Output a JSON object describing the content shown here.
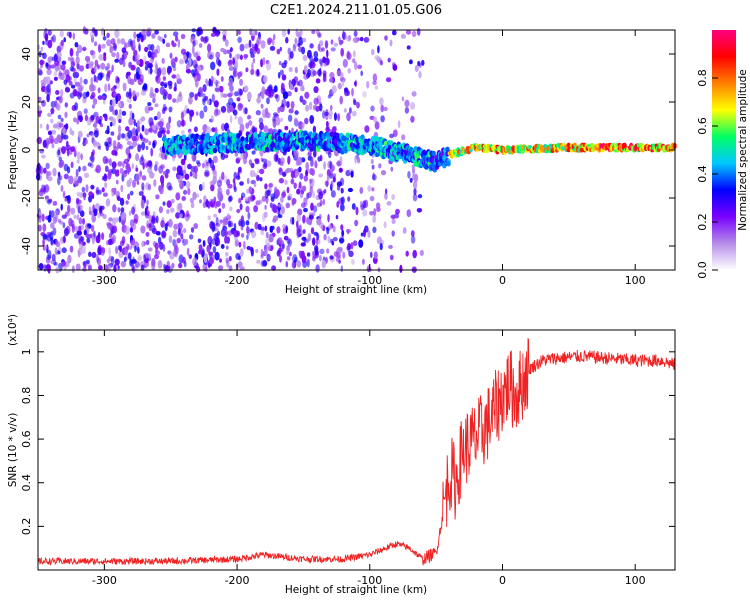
{
  "title": "C2E1.2024.211.01.05.G06",
  "chart_data": [
    {
      "type": "heatmap",
      "xlabel": "Height of straight line (km)",
      "ylabel": "Frequency (Hz)",
      "xlim": [
        -350,
        130
      ],
      "ylim": [
        -50,
        50
      ],
      "x_ticks": [
        -300,
        -200,
        -100,
        0,
        100
      ],
      "y_ticks": [
        -40,
        -20,
        0,
        20,
        40
      ],
      "colorbar": {
        "label": "Normalized spectral amplitude",
        "range": [
          0.0,
          1.0
        ],
        "ticks": [
          "0.0",
          "0.2",
          "0.4",
          "0.6",
          "0.8"
        ],
        "colors": [
          "#ffffff",
          "#b58ce8",
          "#7a00ff",
          "#0000ff",
          "#00c8ff",
          "#00ff64",
          "#ffff00",
          "#ff8000",
          "#ff0000",
          "#ff0080"
        ]
      },
      "features": [
        {
          "name": "scattered noise",
          "x_range": [
            -350,
            -60
          ],
          "freq_range": [
            -50,
            50
          ],
          "amplitude": 0.1
        },
        {
          "name": "signal track",
          "points": [
            [
              -250,
              2
            ],
            [
              -200,
              3
            ],
            [
              -150,
              4
            ],
            [
              -100,
              2
            ],
            [
              -70,
              -2
            ],
            [
              -50,
              -5
            ],
            [
              -40,
              -2
            ],
            [
              -20,
              1
            ],
            [
              0,
              0
            ],
            [
              50,
              1
            ],
            [
              100,
              1
            ],
            [
              130,
              1
            ]
          ],
          "amplitude_range": [
            0.2,
            1.0
          ]
        }
      ]
    },
    {
      "type": "line",
      "xlabel": "Height of straight line (km)",
      "ylabel": "SNR (10 * v/v)",
      "y_multiplier": "(x10⁴)",
      "xlim": [
        -350,
        130
      ],
      "ylim": [
        0.0,
        1.1
      ],
      "x_ticks": [
        -300,
        -200,
        -100,
        0,
        100
      ],
      "y_ticks": [
        0.2,
        0.4,
        0.6,
        0.8,
        1.0
      ],
      "series": [
        {
          "color": "#ee2222",
          "x": [
            -350,
            -300,
            -250,
            -200,
            -180,
            -150,
            -120,
            -100,
            -80,
            -70,
            -60,
            -50,
            -45,
            -40,
            -35,
            -30,
            -20,
            -10,
            0,
            5,
            10,
            20,
            30,
            40,
            60,
            80,
            100,
            120,
            130
          ],
          "y": [
            0.04,
            0.04,
            0.04,
            0.05,
            0.07,
            0.05,
            0.05,
            0.07,
            0.12,
            0.1,
            0.05,
            0.08,
            0.25,
            0.45,
            0.4,
            0.55,
            0.6,
            0.68,
            0.8,
            0.85,
            0.8,
            0.92,
            0.96,
            0.97,
            0.98,
            0.97,
            0.96,
            0.96,
            0.94
          ]
        }
      ]
    }
  ]
}
